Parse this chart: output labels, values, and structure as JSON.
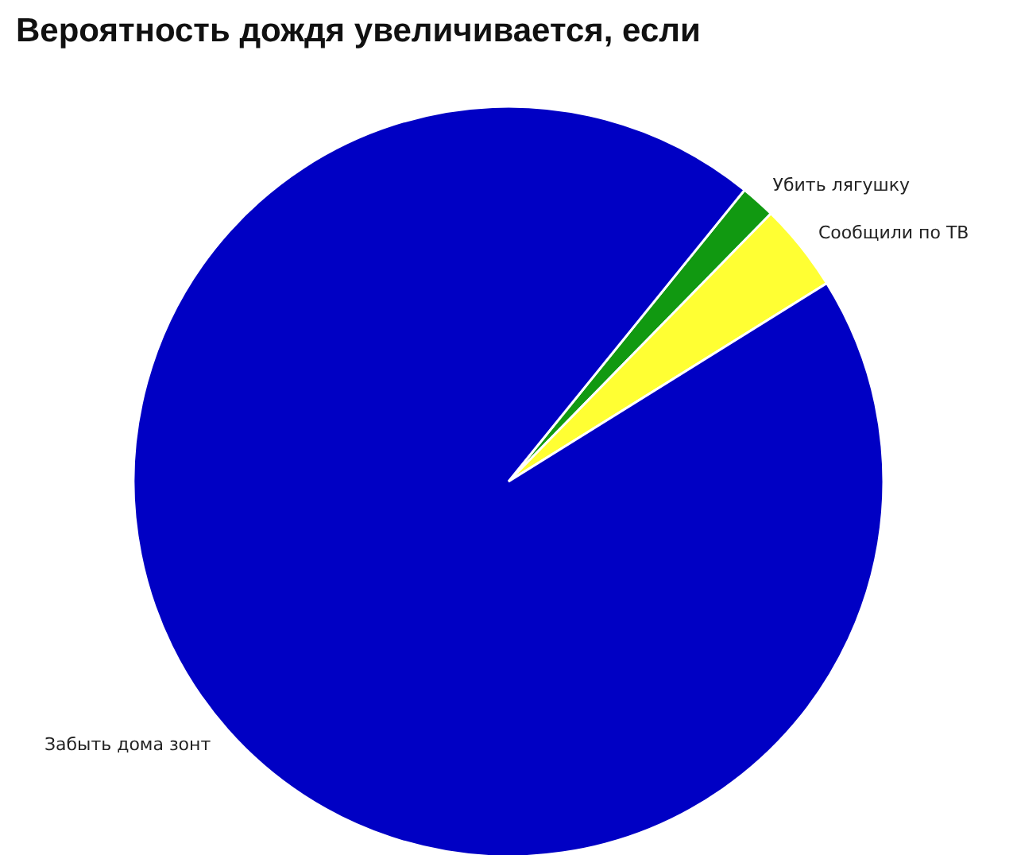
{
  "chart_data": {
    "type": "pie",
    "title": "Вероятность дождя увеличивается, если",
    "categories": [
      "Убить лягушку",
      "Сообщили по ТВ",
      "Забыть дома зонт"
    ],
    "values": [
      1.5,
      3.8,
      94.7
    ],
    "colors": [
      "#119911",
      "#ffff33",
      "#0000c4"
    ],
    "legend": false
  }
}
